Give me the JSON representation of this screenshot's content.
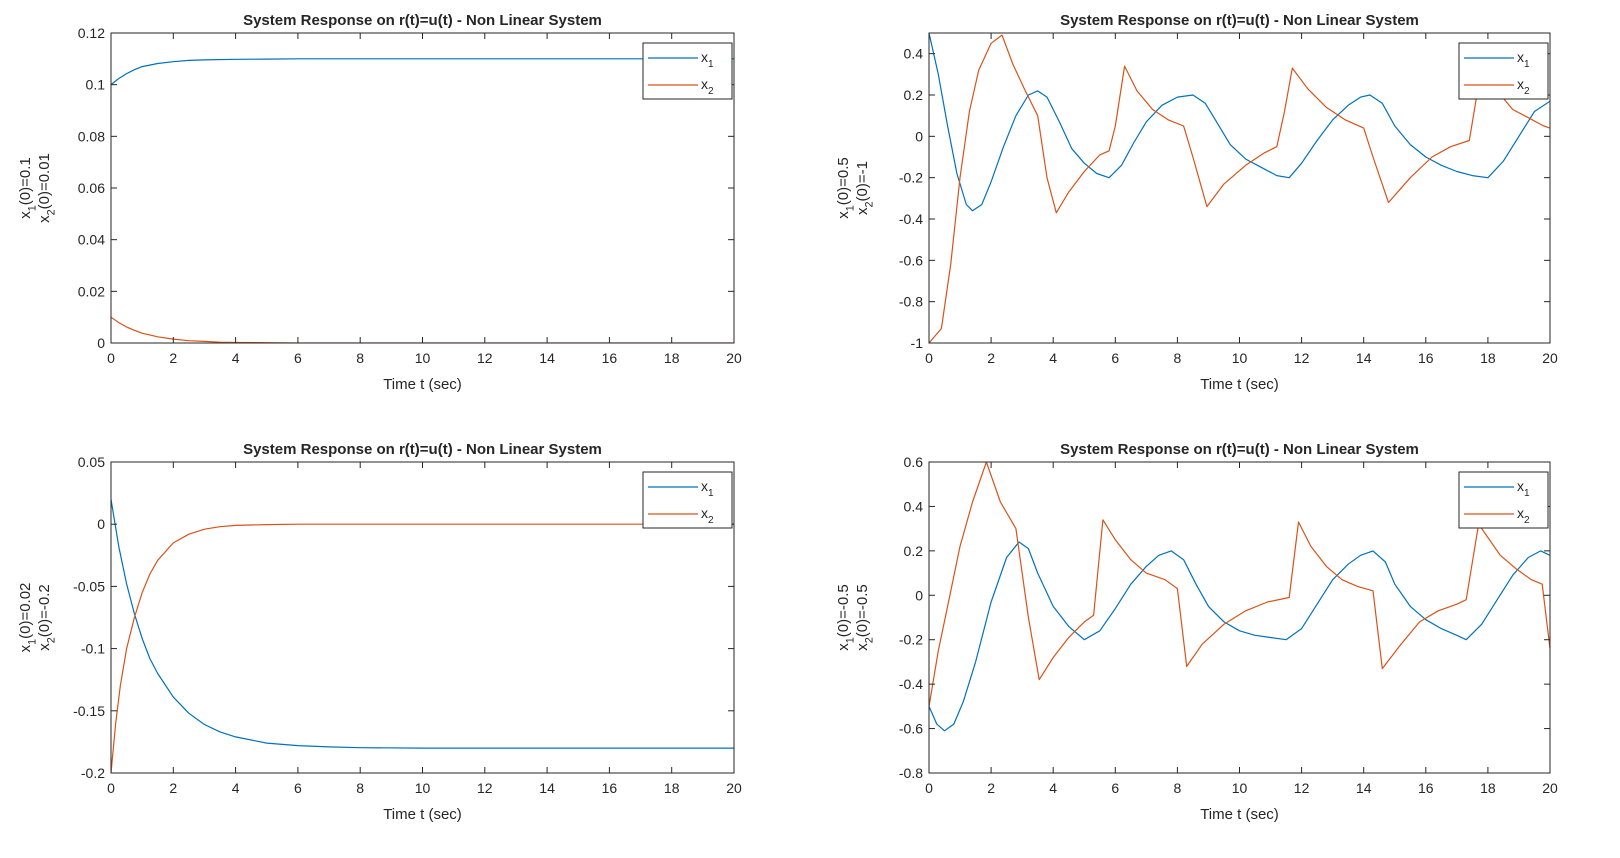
{
  "colors": {
    "x1": "#0072BD",
    "x2": "#D95319",
    "axes": "#262626",
    "background": "#ffffff"
  },
  "chart_data": [
    {
      "type": "line",
      "title": "System Response on r(t)=u(t) - Non Linear System",
      "xlabel": "Time t (sec)",
      "ylabel_line1": {
        "base": "x",
        "sub": "1",
        "rest": "(0)=0.1"
      },
      "ylabel_line2": {
        "base": "x",
        "sub": "2",
        "rest": "(0)=0.01"
      },
      "xlim": [
        0,
        20
      ],
      "ylim": [
        0,
        0.12
      ],
      "xticks": [
        0,
        2,
        4,
        6,
        8,
        10,
        12,
        14,
        16,
        18,
        20
      ],
      "xtick_labels": [
        "0",
        "2",
        "4",
        "6",
        "8",
        "10",
        "12",
        "14",
        "16",
        "18",
        "20"
      ],
      "yticks": [
        0,
        0.02,
        0.04,
        0.06,
        0.08,
        0.1,
        0.12
      ],
      "ytick_labels": [
        "0",
        "0.02",
        "0.04",
        "0.06",
        "0.08",
        "0.1",
        "0.12"
      ],
      "legend_position": "top-right",
      "series": [
        {
          "name": "x1",
          "legend_base": "x",
          "legend_sub": "1",
          "color": "#0072BD",
          "x": [
            0,
            0.25,
            0.5,
            0.75,
            1,
            1.5,
            2,
            2.5,
            3,
            4,
            5,
            6,
            8,
            10,
            12,
            14,
            16,
            18,
            20
          ],
          "y": [
            0.1,
            0.1024,
            0.1043,
            0.1058,
            0.107,
            0.1082,
            0.1089,
            0.1094,
            0.1096,
            0.1098,
            0.1099,
            0.11,
            0.11,
            0.11,
            0.11,
            0.11,
            0.11,
            0.11,
            0.11
          ]
        },
        {
          "name": "x2",
          "legend_base": "x",
          "legend_sub": "2",
          "color": "#D95319",
          "x": [
            0,
            0.25,
            0.5,
            0.75,
            1,
            1.5,
            2,
            2.5,
            3,
            3.5,
            4,
            5,
            6,
            8,
            10,
            12,
            14,
            16,
            18,
            20
          ],
          "y": [
            0.01,
            0.0079,
            0.0062,
            0.0049,
            0.0038,
            0.0024,
            0.0015,
            0.0009,
            0.0006,
            0.0003,
            0.0002,
            0.0001,
            0,
            0,
            0,
            0,
            0,
            0,
            0,
            0
          ]
        }
      ]
    },
    {
      "type": "line",
      "title": "System Response on r(t)=u(t) - Non Linear System",
      "xlabel": "Time t (sec)",
      "ylabel_line1": {
        "base": "x",
        "sub": "1",
        "rest": "(0)=0.5"
      },
      "ylabel_line2": {
        "base": "x",
        "sub": "2",
        "rest": "(0)=-1"
      },
      "xlim": [
        0,
        20
      ],
      "ylim": [
        -1,
        0.5
      ],
      "xticks": [
        0,
        2,
        4,
        6,
        8,
        10,
        12,
        14,
        16,
        18,
        20
      ],
      "xtick_labels": [
        "0",
        "2",
        "4",
        "6",
        "8",
        "10",
        "12",
        "14",
        "16",
        "18",
        "20"
      ],
      "yticks": [
        -1,
        -0.8,
        -0.6,
        -0.4,
        -0.2,
        0,
        0.2,
        0.4
      ],
      "ytick_labels": [
        "-1",
        "-0.8",
        "-0.6",
        "-0.4",
        "-0.2",
        "0",
        "0.2",
        "0.4"
      ],
      "legend_position": "top-right",
      "series": [
        {
          "name": "x1",
          "legend_base": "x",
          "legend_sub": "1",
          "color": "#0072BD",
          "x": [
            0,
            0.3,
            0.6,
            0.9,
            1.2,
            1.4,
            1.7,
            2.0,
            2.4,
            2.8,
            3.2,
            3.5,
            3.8,
            4.2,
            4.6,
            5.0,
            5.4,
            5.8,
            6.2,
            6.6,
            7.0,
            7.5,
            8.0,
            8.5,
            8.9,
            9.3,
            9.7,
            10.2,
            10.7,
            11.2,
            11.6,
            12.0,
            12.5,
            13.0,
            13.5,
            13.9,
            14.2,
            14.6,
            15.0,
            15.5,
            16.0,
            16.5,
            17.0,
            17.5,
            18.0,
            18.5,
            19.0,
            19.5,
            20
          ],
          "y": [
            0.5,
            0.3,
            0.05,
            -0.18,
            -0.33,
            -0.36,
            -0.33,
            -0.22,
            -0.05,
            0.1,
            0.2,
            0.22,
            0.19,
            0.07,
            -0.06,
            -0.13,
            -0.18,
            -0.2,
            -0.14,
            -0.03,
            0.07,
            0.15,
            0.19,
            0.2,
            0.16,
            0.06,
            -0.04,
            -0.11,
            -0.15,
            -0.19,
            -0.2,
            -0.13,
            -0.02,
            0.08,
            0.15,
            0.19,
            0.2,
            0.16,
            0.05,
            -0.04,
            -0.1,
            -0.14,
            -0.17,
            -0.19,
            -0.2,
            -0.12,
            0.0,
            0.12,
            0.17
          ]
        },
        {
          "name": "x2",
          "legend_base": "x",
          "legend_sub": "2",
          "color": "#D95319",
          "x": [
            0,
            0.4,
            0.7,
            1.0,
            1.3,
            1.6,
            2.0,
            2.35,
            2.7,
            3.1,
            3.5,
            3.8,
            4.1,
            4.5,
            5.0,
            5.5,
            5.8,
            6.0,
            6.3,
            6.7,
            7.2,
            7.7,
            8.2,
            8.5,
            8.95,
            9.5,
            10.2,
            10.8,
            11.2,
            11.45,
            11.7,
            12.2,
            12.8,
            13.4,
            14.0,
            14.3,
            14.8,
            15.5,
            16.2,
            16.8,
            17.4,
            17.7,
            18.0,
            18.3,
            18.8,
            19.3,
            19.8,
            20
          ],
          "y": [
            -1,
            -0.93,
            -0.62,
            -0.2,
            0.12,
            0.32,
            0.45,
            0.49,
            0.35,
            0.22,
            0.1,
            -0.2,
            -0.37,
            -0.27,
            -0.17,
            -0.09,
            -0.07,
            0.05,
            0.34,
            0.22,
            0.13,
            0.08,
            0.05,
            -0.1,
            -0.34,
            -0.23,
            -0.14,
            -0.08,
            -0.05,
            0.12,
            0.33,
            0.23,
            0.14,
            0.08,
            0.04,
            -0.1,
            -0.32,
            -0.2,
            -0.1,
            -0.05,
            -0.02,
            0.25,
            0.3,
            0.22,
            0.13,
            0.09,
            0.05,
            0.04
          ]
        }
      ]
    },
    {
      "type": "line",
      "title": "System Response on r(t)=u(t) - Non Linear System",
      "xlabel": "Time t (sec)",
      "ylabel_line1": {
        "base": "x",
        "sub": "1",
        "rest": "(0)=0.02"
      },
      "ylabel_line2": {
        "base": "x",
        "sub": "2",
        "rest": "(0)=-0.2"
      },
      "xlim": [
        0,
        20
      ],
      "ylim": [
        -0.2,
        0.05
      ],
      "xticks": [
        0,
        2,
        4,
        6,
        8,
        10,
        12,
        14,
        16,
        18,
        20
      ],
      "xtick_labels": [
        "0",
        "2",
        "4",
        "6",
        "8",
        "10",
        "12",
        "14",
        "16",
        "18",
        "20"
      ],
      "yticks": [
        -0.2,
        -0.15,
        -0.1,
        -0.05,
        0,
        0.05
      ],
      "ytick_labels": [
        "-0.2",
        "-0.15",
        "-0.1",
        "-0.05",
        "0",
        "0.05"
      ],
      "legend_position": "top-right",
      "series": [
        {
          "name": "x1",
          "legend_base": "x",
          "legend_sub": "1",
          "color": "#0072BD",
          "x": [
            0,
            0.25,
            0.5,
            0.75,
            1,
            1.25,
            1.5,
            2,
            2.5,
            3,
            3.5,
            4,
            5,
            6,
            7,
            8,
            10,
            12,
            14,
            16,
            18,
            20
          ],
          "y": [
            0.02,
            -0.018,
            -0.048,
            -0.072,
            -0.092,
            -0.108,
            -0.12,
            -0.139,
            -0.152,
            -0.161,
            -0.167,
            -0.171,
            -0.176,
            -0.178,
            -0.179,
            -0.1797,
            -0.18,
            -0.18,
            -0.18,
            -0.18,
            -0.18,
            -0.18
          ]
        },
        {
          "name": "x2",
          "legend_base": "x",
          "legend_sub": "2",
          "color": "#D95319",
          "x": [
            0,
            0.15,
            0.3,
            0.5,
            0.75,
            1,
            1.25,
            1.5,
            2,
            2.5,
            3,
            3.5,
            4,
            5,
            6,
            8,
            10,
            12,
            14,
            16,
            18,
            20
          ],
          "y": [
            -0.2,
            -0.16,
            -0.13,
            -0.1,
            -0.075,
            -0.055,
            -0.04,
            -0.029,
            -0.015,
            -0.008,
            -0.004,
            -0.002,
            -0.001,
            -0.0003,
            0,
            0,
            0,
            0,
            0,
            0,
            0,
            0
          ]
        }
      ]
    },
    {
      "type": "line",
      "title": "System Response on r(t)=u(t) - Non Linear System",
      "xlabel": "Time t (sec)",
      "ylabel_line1": {
        "base": "x",
        "sub": "1",
        "rest": "(0)=-0.5"
      },
      "ylabel_line2": {
        "base": "x",
        "sub": "2",
        "rest": "(0)=-0.5"
      },
      "xlim": [
        0,
        20
      ],
      "ylim": [
        -0.8,
        0.6
      ],
      "xticks": [
        0,
        2,
        4,
        6,
        8,
        10,
        12,
        14,
        16,
        18,
        20
      ],
      "xtick_labels": [
        "0",
        "2",
        "4",
        "6",
        "8",
        "10",
        "12",
        "14",
        "16",
        "18",
        "20"
      ],
      "yticks": [
        -0.8,
        -0.6,
        -0.4,
        -0.2,
        0,
        0.2,
        0.4,
        0.6
      ],
      "ytick_labels": [
        "-0.8",
        "-0.6",
        "-0.4",
        "-0.2",
        "0",
        "0.2",
        "0.4",
        "0.6"
      ],
      "legend_position": "top-right",
      "series": [
        {
          "name": "x1",
          "legend_base": "x",
          "legend_sub": "1",
          "color": "#0072BD",
          "x": [
            0,
            0.25,
            0.5,
            0.8,
            1.1,
            1.5,
            2.0,
            2.5,
            2.9,
            3.2,
            3.5,
            4.0,
            4.5,
            5.0,
            5.5,
            6.0,
            6.5,
            7.0,
            7.4,
            7.8,
            8.2,
            8.6,
            9.0,
            9.5,
            10.0,
            10.5,
            11.0,
            11.5,
            12.0,
            12.5,
            13.0,
            13.5,
            13.9,
            14.3,
            14.7,
            15.0,
            15.5,
            16.0,
            16.5,
            17.0,
            17.3,
            17.8,
            18.3,
            18.8,
            19.3,
            19.7,
            20
          ],
          "y": [
            -0.5,
            -0.58,
            -0.61,
            -0.58,
            -0.48,
            -0.3,
            -0.03,
            0.17,
            0.24,
            0.21,
            0.1,
            -0.05,
            -0.14,
            -0.2,
            -0.16,
            -0.06,
            0.05,
            0.13,
            0.18,
            0.2,
            0.16,
            0.05,
            -0.05,
            -0.12,
            -0.16,
            -0.18,
            -0.19,
            -0.2,
            -0.15,
            -0.04,
            0.07,
            0.14,
            0.18,
            0.2,
            0.15,
            0.05,
            -0.05,
            -0.11,
            -0.15,
            -0.18,
            -0.2,
            -0.13,
            -0.02,
            0.09,
            0.17,
            0.2,
            0.18
          ]
        },
        {
          "name": "x2",
          "legend_base": "x",
          "legend_sub": "2",
          "color": "#D95319",
          "x": [
            0,
            0.3,
            0.6,
            1.0,
            1.4,
            1.85,
            2.3,
            2.8,
            3.2,
            3.55,
            4.0,
            4.5,
            5.0,
            5.3,
            5.6,
            6.0,
            6.5,
            7.0,
            7.6,
            8.0,
            8.3,
            8.8,
            9.5,
            10.2,
            10.9,
            11.6,
            11.9,
            12.3,
            12.8,
            13.3,
            13.8,
            14.3,
            14.6,
            15.2,
            15.8,
            16.4,
            17.0,
            17.3,
            17.7,
            18.0,
            18.4,
            18.9,
            19.4,
            19.75,
            20
          ],
          "y": [
            -0.5,
            -0.25,
            -0.05,
            0.22,
            0.42,
            0.6,
            0.42,
            0.3,
            -0.1,
            -0.38,
            -0.28,
            -0.19,
            -0.12,
            -0.09,
            0.34,
            0.25,
            0.16,
            0.1,
            0.07,
            0.03,
            -0.32,
            -0.22,
            -0.13,
            -0.07,
            -0.03,
            -0.01,
            0.33,
            0.22,
            0.13,
            0.07,
            0.04,
            0.02,
            -0.33,
            -0.22,
            -0.12,
            -0.07,
            -0.04,
            -0.02,
            0.32,
            0.26,
            0.18,
            0.12,
            0.07,
            0.05,
            -0.24
          ]
        }
      ]
    }
  ]
}
